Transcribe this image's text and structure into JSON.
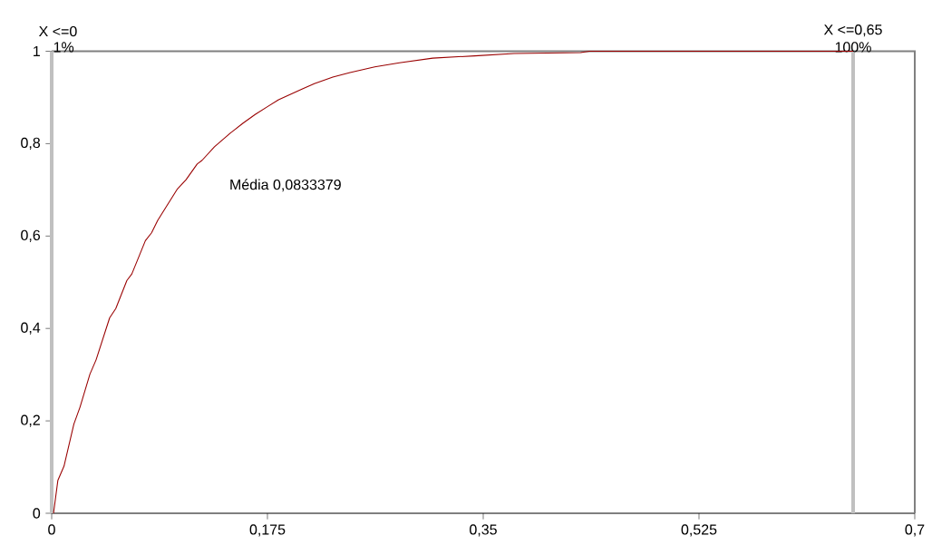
{
  "chart_data": {
    "type": "line",
    "x": [
      0.0015,
      0.005,
      0.01,
      0.018,
      0.023,
      0.031,
      0.036,
      0.047,
      0.052,
      0.061,
      0.065,
      0.076,
      0.081,
      0.086,
      0.102,
      0.109,
      0.118,
      0.122,
      0.132,
      0.145,
      0.155,
      0.165,
      0.175,
      0.184,
      0.203,
      0.213,
      0.228,
      0.242,
      0.262,
      0.282,
      0.309,
      0.343,
      0.375,
      0.429,
      0.436,
      0.65
    ],
    "series": [
      {
        "color": "#990000",
        "values": [
          0,
          0.071,
          0.102,
          0.193,
          0.23,
          0.301,
          0.332,
          0.423,
          0.443,
          0.504,
          0.518,
          0.59,
          0.607,
          0.634,
          0.702,
          0.722,
          0.756,
          0.764,
          0.793,
          0.823,
          0.844,
          0.863,
          0.88,
          0.895,
          0.918,
          0.93,
          0.944,
          0.954,
          0.966,
          0.975,
          0.985,
          0.99,
          0.995,
          0.997,
          1.0,
          1.0
        ]
      }
    ],
    "xlim": [
      0,
      0.7
    ],
    "ylim": [
      0,
      1
    ],
    "xticks": [
      0,
      {
        "value": 0.175,
        "label": "0,175"
      },
      {
        "value": 0.35,
        "label": "0,35"
      },
      {
        "value": 0.525,
        "label": "0,525"
      },
      {
        "value": 0.7,
        "label": "0,7"
      }
    ],
    "yticks": [
      0,
      {
        "value": 0.2,
        "label": "0,2"
      },
      {
        "value": 0.4,
        "label": "0,4"
      },
      {
        "value": 0.6,
        "label": "0,6"
      },
      {
        "value": 0.8,
        "label": "0,8"
      },
      1
    ],
    "ref_lines": [
      {
        "axis": "x",
        "value": 0,
        "label": "X <=0",
        "color": "#c0c0c0"
      },
      {
        "axis": "x",
        "value": 0.65,
        "label": "X <=0,65",
        "color": "#c0c0c0"
      }
    ],
    "annotations": [
      "1%",
      "100%",
      "Média  0,0833379"
    ],
    "grid": false,
    "marker": "none",
    "line_style": "solid"
  }
}
